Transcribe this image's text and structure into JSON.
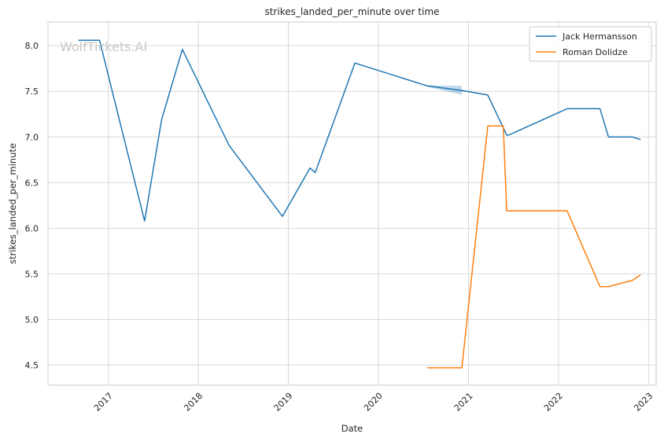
{
  "chart_data": {
    "type": "line",
    "title": "strikes_landed_per_minute over time",
    "xlabel": "Date",
    "ylabel": "strikes_landed_per_minute",
    "x_type": "date",
    "xlim": [
      "2016-05-01",
      "2023-02-01"
    ],
    "ylim": [
      4.28,
      8.26
    ],
    "x_ticks": [
      "2017-01-01",
      "2018-01-01",
      "2019-01-01",
      "2020-01-01",
      "2021-01-01",
      "2022-01-01",
      "2023-01-01"
    ],
    "x_tick_labels": [
      "2017",
      "2018",
      "2019",
      "2020",
      "2021",
      "2022",
      "2023"
    ],
    "y_ticks": [
      4.5,
      5.0,
      5.5,
      6.0,
      6.5,
      7.0,
      7.5,
      8.0
    ],
    "y_tick_labels": [
      "4.5",
      "5.0",
      "5.5",
      "6.0",
      "6.5",
      "7.0",
      "7.5",
      "8.0"
    ],
    "grid": true,
    "legend_position": "top-right",
    "watermark": "WolfTickets.AI",
    "series": [
      {
        "name": "Jack Hermansson",
        "color": "#1f77b4",
        "points": [
          [
            "2016-09-01",
            8.06
          ],
          [
            "2016-11-26",
            8.06
          ],
          [
            "2017-05-28",
            6.08
          ],
          [
            "2017-08-05",
            7.19
          ],
          [
            "2017-10-28",
            7.96
          ],
          [
            "2018-05-05",
            6.91
          ],
          [
            "2018-12-08",
            6.13
          ],
          [
            "2019-03-30",
            6.66
          ],
          [
            "2019-04-20",
            6.61
          ],
          [
            "2019-09-28",
            7.81
          ],
          [
            "2020-07-18",
            7.56
          ],
          [
            "2020-12-05",
            7.51
          ],
          [
            "2021-03-20",
            7.46
          ],
          [
            "2021-06-05",
            7.02
          ],
          [
            "2021-06-12",
            7.02
          ],
          [
            "2022-02-05",
            7.31
          ],
          [
            "2022-06-18",
            7.31
          ],
          [
            "2022-07-23",
            7.0
          ],
          [
            "2022-10-29",
            7.0
          ],
          [
            "2022-11-30",
            6.97
          ]
        ]
      },
      {
        "name": "Roman Dolidze",
        "color": "#ff7f0e",
        "points": [
          [
            "2020-07-18",
            4.47
          ],
          [
            "2020-12-05",
            4.47
          ],
          [
            "2021-03-20",
            7.12
          ],
          [
            "2021-05-22",
            7.12
          ],
          [
            "2021-06-05",
            6.19
          ],
          [
            "2022-02-05",
            6.19
          ],
          [
            "2022-06-18",
            5.36
          ],
          [
            "2022-07-23",
            5.36
          ],
          [
            "2022-10-29",
            5.43
          ],
          [
            "2022-11-30",
            5.49
          ]
        ]
      }
    ]
  }
}
